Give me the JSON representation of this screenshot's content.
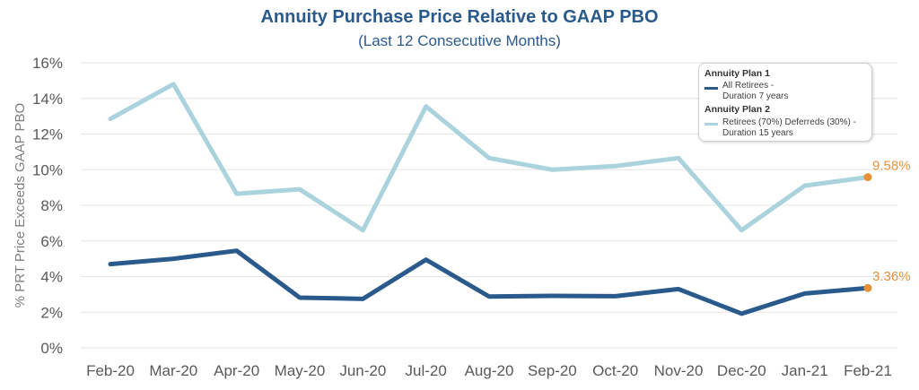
{
  "chart_data": {
    "type": "line",
    "title": "Annuity Purchase Price Relative to GAAP PBO",
    "subtitle": "(Last 12 Consecutive Months)",
    "ylabel": "% PRT Price Exceeds GAAP PBO",
    "xlabel": "",
    "categories": [
      "Feb-20",
      "Mar-20",
      "Apr-20",
      "May-20",
      "Jun-20",
      "Jul-20",
      "Aug-20",
      "Sep-20",
      "Oct-20",
      "Nov-20",
      "Dec-20",
      "Jan-21",
      "Feb-21"
    ],
    "yticks": [
      "0%",
      "2%",
      "4%",
      "6%",
      "8%",
      "10%",
      "12%",
      "14%",
      "16%"
    ],
    "ylim": [
      0,
      16
    ],
    "grid": true,
    "legend_position": "top-right",
    "series": [
      {
        "name": "Annuity Plan 1",
        "legend_text_1": "All Retirees -",
        "legend_text_2": "Duration 7 years",
        "color": "#2a5a8c",
        "values": [
          4.7,
          5.0,
          5.45,
          2.82,
          2.75,
          4.95,
          2.88,
          2.92,
          2.9,
          3.3,
          1.92,
          3.05,
          3.36
        ],
        "end_label": "3.36%"
      },
      {
        "name": "Annuity Plan 2",
        "legend_text_1": "Retirees (70%) Deferreds (30%) -",
        "legend_text_2": "Duration 15 years",
        "color": "#abd3dd",
        "values": [
          12.85,
          14.8,
          8.65,
          8.9,
          6.6,
          13.55,
          10.65,
          10.0,
          10.2,
          10.65,
          6.6,
          9.1,
          9.58
        ],
        "end_label": "9.58%"
      }
    ],
    "end_marker_color": "#e69138"
  }
}
